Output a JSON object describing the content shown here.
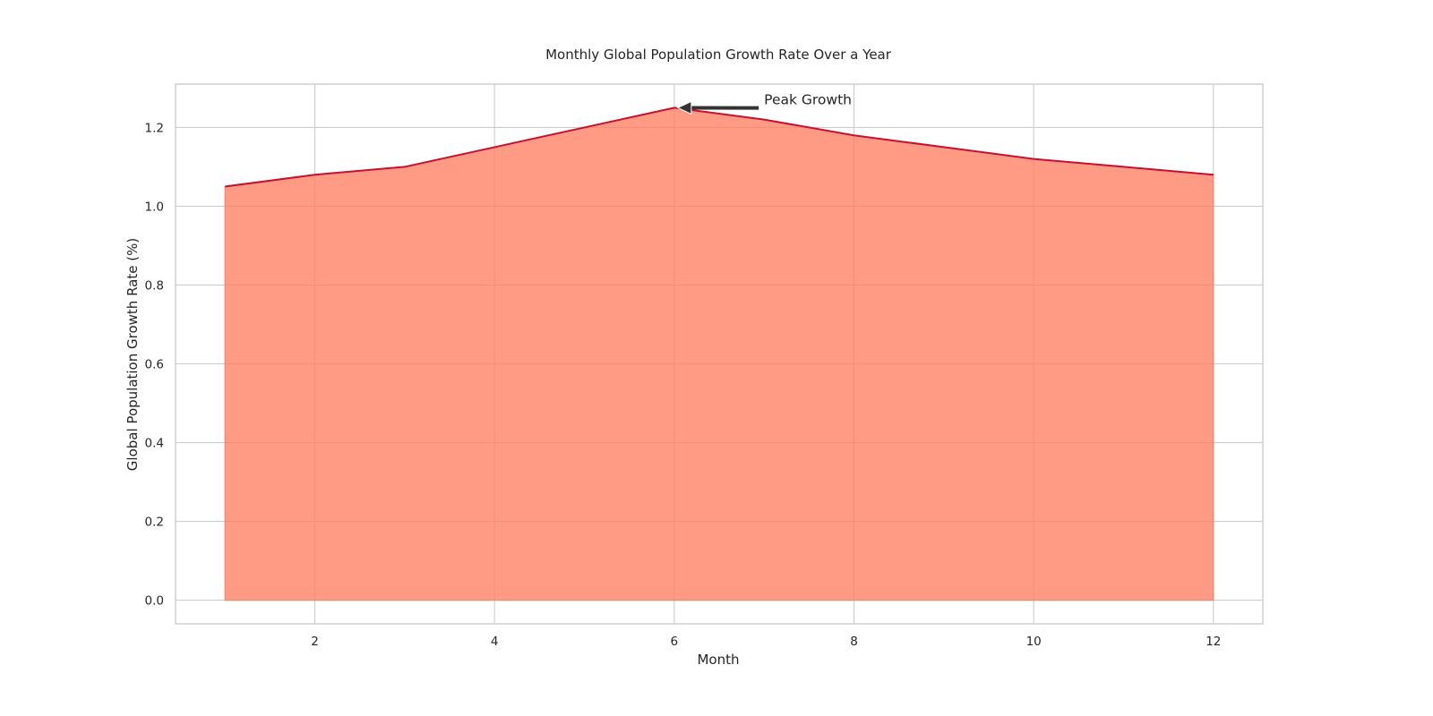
{
  "chart_data": {
    "type": "area",
    "title": "Monthly Global Population Growth Rate Over a Year",
    "xlabel": "Month",
    "ylabel": "Global Population Growth Rate (%)",
    "x": [
      1,
      2,
      3,
      4,
      5,
      6,
      7,
      8,
      9,
      10,
      11,
      12
    ],
    "values": [
      1.05,
      1.08,
      1.1,
      1.15,
      1.2,
      1.25,
      1.22,
      1.18,
      1.15,
      1.12,
      1.1,
      1.08
    ],
    "xlim": [
      0.45,
      12.55
    ],
    "ylim": [
      -0.06,
      1.31
    ],
    "xticks": [
      2,
      4,
      6,
      8,
      10,
      12
    ],
    "yticks": [
      0.0,
      0.2,
      0.4,
      0.6,
      0.8,
      1.0,
      1.2
    ],
    "xtick_labels": [
      "2",
      "4",
      "6",
      "8",
      "10",
      "12"
    ],
    "ytick_labels": [
      "0.0",
      "0.2",
      "0.4",
      "0.6",
      "0.8",
      "1.0",
      "1.2"
    ],
    "grid": true,
    "colors": {
      "fill": "#FF7F61",
      "line": "#C8102E",
      "annotation_arrow": "#333333"
    },
    "annotation": {
      "text": "Peak Growth",
      "x": 6,
      "y": 1.25,
      "text_x": 7,
      "text_y": 1.27
    }
  }
}
